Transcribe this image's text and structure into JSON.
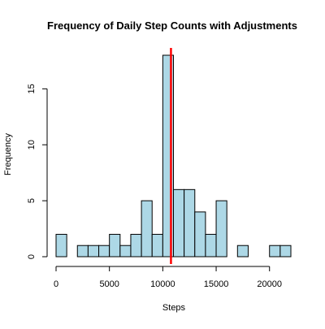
{
  "chart_data": {
    "type": "bar",
    "title": "Frequency of Daily Step Counts with Adjustments",
    "xlabel": "Steps",
    "ylabel": "Frequency",
    "bin_width": 1000,
    "bins": [
      {
        "start": 0,
        "end": 1000,
        "count": 2
      },
      {
        "start": 1000,
        "end": 2000,
        "count": 0
      },
      {
        "start": 2000,
        "end": 3000,
        "count": 1
      },
      {
        "start": 3000,
        "end": 4000,
        "count": 1
      },
      {
        "start": 4000,
        "end": 5000,
        "count": 1
      },
      {
        "start": 5000,
        "end": 6000,
        "count": 2
      },
      {
        "start": 6000,
        "end": 7000,
        "count": 1
      },
      {
        "start": 7000,
        "end": 8000,
        "count": 2
      },
      {
        "start": 8000,
        "end": 9000,
        "count": 5
      },
      {
        "start": 9000,
        "end": 10000,
        "count": 2
      },
      {
        "start": 10000,
        "end": 11000,
        "count": 18
      },
      {
        "start": 11000,
        "end": 12000,
        "count": 6
      },
      {
        "start": 12000,
        "end": 13000,
        "count": 6
      },
      {
        "start": 13000,
        "end": 14000,
        "count": 4
      },
      {
        "start": 14000,
        "end": 15000,
        "count": 2
      },
      {
        "start": 15000,
        "end": 16000,
        "count": 5
      },
      {
        "start": 16000,
        "end": 17000,
        "count": 0
      },
      {
        "start": 17000,
        "end": 18000,
        "count": 1
      },
      {
        "start": 18000,
        "end": 19000,
        "count": 0
      },
      {
        "start": 19000,
        "end": 20000,
        "count": 0
      },
      {
        "start": 20000,
        "end": 21000,
        "count": 1
      },
      {
        "start": 21000,
        "end": 22000,
        "count": 1
      }
    ],
    "reference_line": {
      "x": 10766,
      "color": "#ff0000"
    },
    "xlim": [
      0,
      22000
    ],
    "ylim": [
      0,
      18
    ],
    "x_ticks": [
      0,
      5000,
      10000,
      15000,
      20000
    ],
    "x_tick_labels": [
      "0",
      "5000",
      "10000",
      "15000",
      "20000"
    ],
    "y_ticks": [
      0,
      5,
      10,
      15
    ],
    "y_tick_labels": [
      "0",
      "5",
      "10",
      "15"
    ],
    "bar_fill": "#add8e6",
    "bar_stroke": "#000000",
    "grid": false
  }
}
